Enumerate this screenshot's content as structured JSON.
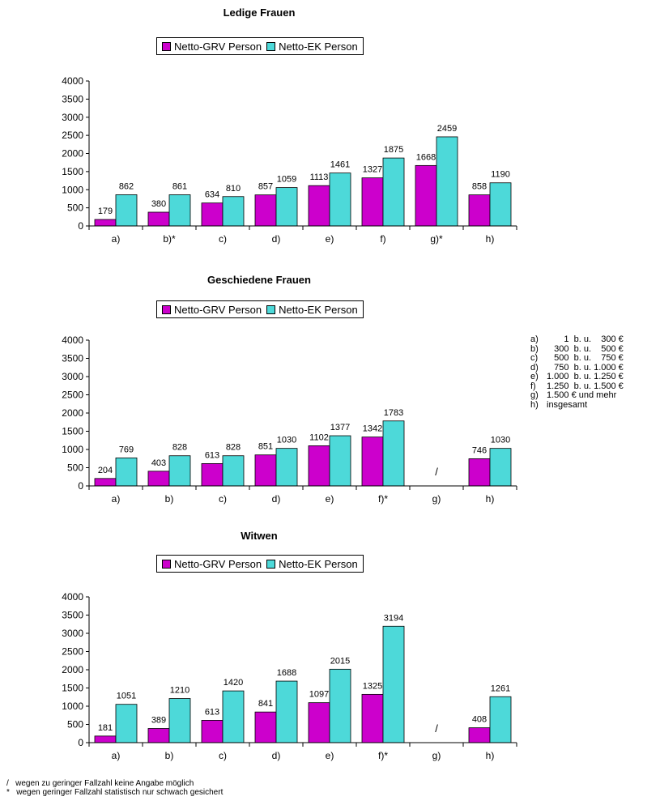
{
  "colors": {
    "grv": "#cc00cc",
    "ek": "#4dd9d9",
    "axis": "#000000"
  },
  "chart_data": [
    {
      "type": "bar",
      "title": "Ledige Frauen",
      "categories": [
        "a)",
        "b)*",
        "c)",
        "d)",
        "e)",
        "f)",
        "g)*",
        "h)"
      ],
      "series": [
        {
          "name": "Netto-GRV Person",
          "values": [
            179,
            380,
            634,
            857,
            1113,
            1327,
            1668,
            858
          ]
        },
        {
          "name": "Netto-EK Person",
          "values": [
            862,
            861,
            810,
            1059,
            1461,
            1875,
            2459,
            1190
          ]
        }
      ],
      "ylim": [
        0,
        4000
      ],
      "yticks": [
        0,
        500,
        1000,
        1500,
        2000,
        2500,
        3000,
        3500,
        4000
      ],
      "legend": "top",
      "grid": false,
      "missing_marker": "/"
    },
    {
      "type": "bar",
      "title": "Geschiedene Frauen",
      "categories": [
        "a)",
        "b)",
        "c)",
        "d)",
        "e)",
        "f)*",
        "g)",
        "h)"
      ],
      "series": [
        {
          "name": "Netto-GRV Person",
          "values": [
            204,
            403,
            613,
            851,
            1102,
            1342,
            null,
            746
          ]
        },
        {
          "name": "Netto-EK Person",
          "values": [
            769,
            828,
            828,
            1030,
            1377,
            1783,
            null,
            1030
          ]
        }
      ],
      "ylim": [
        0,
        4000
      ],
      "yticks": [
        0,
        500,
        1000,
        1500,
        2000,
        2500,
        3000,
        3500,
        4000
      ],
      "legend": "top",
      "grid": false,
      "missing_marker": "/"
    },
    {
      "type": "bar",
      "title": "Witwen",
      "categories": [
        "a)",
        "b)",
        "c)",
        "d)",
        "e)",
        "f)*",
        "g)",
        "h)"
      ],
      "series": [
        {
          "name": "Netto-GRV Person",
          "values": [
            181,
            389,
            613,
            841,
            1097,
            1325,
            null,
            408
          ]
        },
        {
          "name": "Netto-EK Person",
          "values": [
            1051,
            1210,
            1420,
            1688,
            2015,
            3194,
            null,
            1261
          ]
        }
      ],
      "ylim": [
        0,
        4000
      ],
      "yticks": [
        0,
        500,
        1000,
        1500,
        2000,
        2500,
        3000,
        3500,
        4000
      ],
      "legend": "top",
      "grid": false,
      "missing_marker": "/"
    }
  ],
  "key": [
    {
      "code": "a)",
      "text": "       1  b. u.    300 €"
    },
    {
      "code": "b)",
      "text": "   300  b. u.    500 €"
    },
    {
      "code": "c)",
      "text": "   500  b. u.    750 €"
    },
    {
      "code": "d)",
      "text": "   750  b. u. 1.000 €"
    },
    {
      "code": "e)",
      "text": "1.000  b. u. 1.250 €"
    },
    {
      "code": "f)",
      "text": "1.250  b. u. 1.500 €"
    },
    {
      "code": "g)",
      "text": "1.500 € und mehr"
    },
    {
      "code": "h)",
      "text": "insgesamt"
    }
  ],
  "footnotes": [
    "/   wegen zu geringer Fallzahl keine Angabe möglich",
    "*   wegen geringer Fallzahl statistisch nur schwach gesichert"
  ]
}
